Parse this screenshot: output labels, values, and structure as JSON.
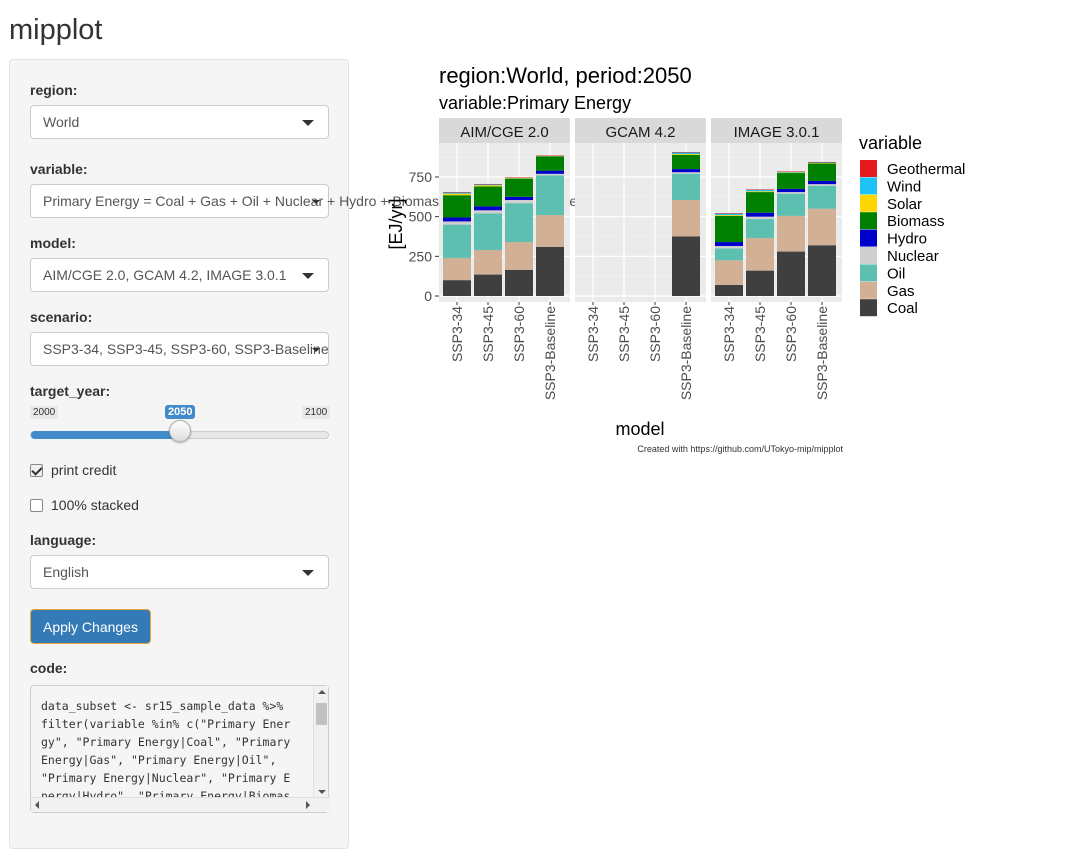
{
  "app": {
    "title": "mipplot"
  },
  "sidebar": {
    "region": {
      "label": "region:",
      "value": "World"
    },
    "variable": {
      "label": "variable:",
      "value": "Primary Energy = Coal + Gas + Oil + Nuclear + Hydro + Biomass + Solar + Wind + Geothermal"
    },
    "model": {
      "label": "model:",
      "value": "AIM/CGE 2.0, GCAM 4.2, IMAGE 3.0.1"
    },
    "scenario": {
      "label": "scenario:",
      "value": "SSP3-34, SSP3-45, SSP3-60, SSP3-Baseline"
    },
    "target_year": {
      "label": "target_year:",
      "min": "2000",
      "max": "2100",
      "value": "2050",
      "fraction": 0.5
    },
    "print_credit": {
      "label": "print credit",
      "checked": true
    },
    "stacked_100": {
      "label": "100% stacked",
      "checked": false
    },
    "language": {
      "label": "language:",
      "value": "English"
    },
    "apply_label": "Apply Changes",
    "code": {
      "label": "code:",
      "text": "data_subset <- sr15_sample_data %>%\nfilter(variable %in% c(\"Primary Ener\ngy\", \"Primary Energy|Coal\", \"Primary\nEnergy|Gas\", \"Primary Energy|Oil\",\n\"Primary Energy|Nuclear\", \"Primary E\nnergy|Hydro\", \"Primary Energy|Biomas"
    }
  },
  "chart_data": {
    "type": "bar",
    "stacked": true,
    "title": "region:World,  period:2050",
    "subtitle": "variable:Primary Energy",
    "xlabel": "model",
    "ylabel": "[EJ/yr]",
    "ylim": [
      0,
      950
    ],
    "yticks": [
      0,
      250,
      500,
      750
    ],
    "legend_title": "variable",
    "legend_position": "right",
    "grid": true,
    "caption": "Created with https://github.com/UTokyo-mip/mipplot",
    "variables": [
      "Geothermal",
      "Wind",
      "Solar",
      "Biomass",
      "Hydro",
      "Nuclear",
      "Oil",
      "Gas",
      "Coal"
    ],
    "colors": {
      "Geothermal": "#e41a1c",
      "Wind": "#1ec3f5",
      "Solar": "#ffd700",
      "Biomass": "#008000",
      "Hydro": "#0000cd",
      "Nuclear": "#cfcfcf",
      "Oil": "#5dbfb0",
      "Gas": "#d2b095",
      "Coal": "#3f3f3f"
    },
    "categories": [
      "SSP3-34",
      "SSP3-45",
      "SSP3-60",
      "SSP3-Baseline"
    ],
    "panels": [
      {
        "model": "AIM/CGE 2.0",
        "bars": [
          {
            "scenario": "SSP3-34",
            "Coal": 100,
            "Gas": 140,
            "Oil": 210,
            "Nuclear": 20,
            "Hydro": 25,
            "Biomass": 140,
            "Solar": 10,
            "Wind": 8,
            "Geothermal": 2
          },
          {
            "scenario": "SSP3-45",
            "Coal": 135,
            "Gas": 155,
            "Oil": 230,
            "Nuclear": 20,
            "Hydro": 25,
            "Biomass": 125,
            "Solar": 8,
            "Wind": 7,
            "Geothermal": 1
          },
          {
            "scenario": "SSP3-60",
            "Coal": 165,
            "Gas": 175,
            "Oil": 245,
            "Nuclear": 20,
            "Hydro": 20,
            "Biomass": 115,
            "Solar": 3,
            "Wind": 3,
            "Geothermal": 1
          },
          {
            "scenario": "SSP3-Baseline",
            "Coal": 310,
            "Gas": 200,
            "Oil": 250,
            "Nuclear": 10,
            "Hydro": 20,
            "Biomass": 90,
            "Solar": 2,
            "Wind": 2,
            "Geothermal": 1
          }
        ]
      },
      {
        "model": "GCAM 4.2",
        "bars": [
          {
            "scenario": "SSP3-Baseline",
            "Coal": 375,
            "Gas": 230,
            "Oil": 165,
            "Nuclear": 10,
            "Hydro": 20,
            "Biomass": 90,
            "Solar": 5,
            "Wind": 10,
            "Geothermal": 2
          }
        ]
      },
      {
        "model": "IMAGE 3.0.1",
        "bars": [
          {
            "scenario": "SSP3-34",
            "Coal": 70,
            "Gas": 155,
            "Oil": 75,
            "Nuclear": 15,
            "Hydro": 25,
            "Biomass": 165,
            "Solar": 5,
            "Wind": 10,
            "Geothermal": 2
          },
          {
            "scenario": "SSP3-45",
            "Coal": 160,
            "Gas": 205,
            "Oil": 120,
            "Nuclear": 15,
            "Hydro": 25,
            "Biomass": 130,
            "Solar": 5,
            "Wind": 10,
            "Geothermal": 2
          },
          {
            "scenario": "SSP3-60",
            "Coal": 280,
            "Gas": 225,
            "Oil": 140,
            "Nuclear": 10,
            "Hydro": 20,
            "Biomass": 100,
            "Solar": 3,
            "Wind": 5,
            "Geothermal": 2
          },
          {
            "scenario": "SSP3-Baseline",
            "Coal": 320,
            "Gas": 230,
            "Oil": 145,
            "Nuclear": 10,
            "Hydro": 20,
            "Biomass": 110,
            "Solar": 3,
            "Wind": 5,
            "Geothermal": 2
          }
        ]
      }
    ]
  }
}
